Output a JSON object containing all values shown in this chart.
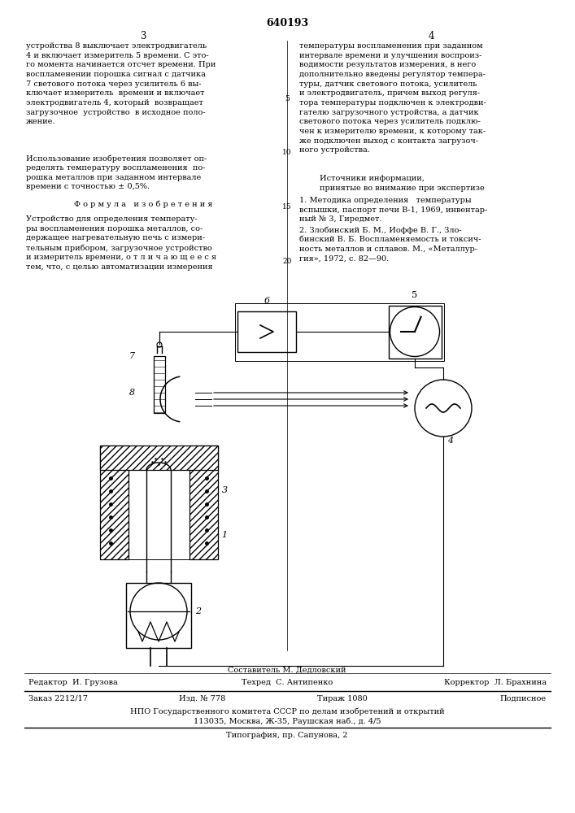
{
  "page_number_center": "640193",
  "col_left_num": "3",
  "col_right_num": "4",
  "col_left_top": "устройства 8 выключает электродвигатель\n4 и включает измеритель 5 времени. С это-\nго момента начинается отсчет времени. При\nвоспламенении порошка сигнал с датчика\n7 светового потока через усилитель 6 вы-\nключает измеритель  времени и включает\nэлектродвигатель 4, который  возвращает\nзагрузочное  устройство  в исходное поло-\nжение.",
  "col_left_mid": "Использование изобретения позволяет оп-\nределять температуру воспламенения  по-\nрошка металлов при заданном интервале\nвремени с точностью ± 0,5%.",
  "col_left_formula_title": "Ф о р м у л а   и з о б р е т е н и я",
  "col_left_formula": "Устройство для определения температу-\nры воспламенения порошка металлов, со-\nдержащее нагревательную печь с измери-\nтельным прибором, загрузочное устройство\nи измеритель времени, о т л и ч а ю щ е е с я\nтем, что, с целью автоматизации измерения",
  "col_right_top": "температуры воспламенения при заданном\nинтервале времени и улучшения воспроиз-\nводимости результатов измерения, в него\nдополнительно введены регулятор темпера-\nтуры, датчик светового потока, усилитель\nи электродвигатель, причем выход регуля-\nтора температуры подключен к электродви-\nгателю загрузочного устройства, а датчик\nсветового потока через усилитель подклю-\nчен к измерителю времени, к которому так-\nже подключен выход с контакта загрузоч-\nного устройства.",
  "col_right_sources_title": "Источники информации,\nпринятые во внимание при экспертизе",
  "col_right_source1": "1. Методика определения   температуры\nвспышки, паспорт печи В-1, 1969, инвентар-\nный № 3, Гиредмет.",
  "col_right_source2": "2. Злобинский Б. М., Иоффе В. Г., Зло-\nбинский В. Б. Воспламеняемость и токсич-\nность металлов и сплавов. М., «Металлур-\nгия», 1972, с. 82—90.",
  "footer_sostavitel": "Составитель М. Дедловский",
  "footer_editor": "Редактор  И. Грузова",
  "footer_tekhred": "Техред  С. Антипенко",
  "footer_korrektor": "Корректор  Л. Брахнина",
  "footer_zakaz": "Заказ 2212/17",
  "footer_izd": "Изд. № 778",
  "footer_tirazh": "Тираж 1080",
  "footer_podpisnoe": "Подписное",
  "footer_npo": "НПО Государственного комитета СССР по делам изобретений и открытий",
  "footer_address": "113035, Москва, Ж-35, Раушская наб., д. 4/5",
  "footer_tipografia": "Типография, пр. Сапунова, 2",
  "bg_color": "#ffffff",
  "text_color": "#000000"
}
